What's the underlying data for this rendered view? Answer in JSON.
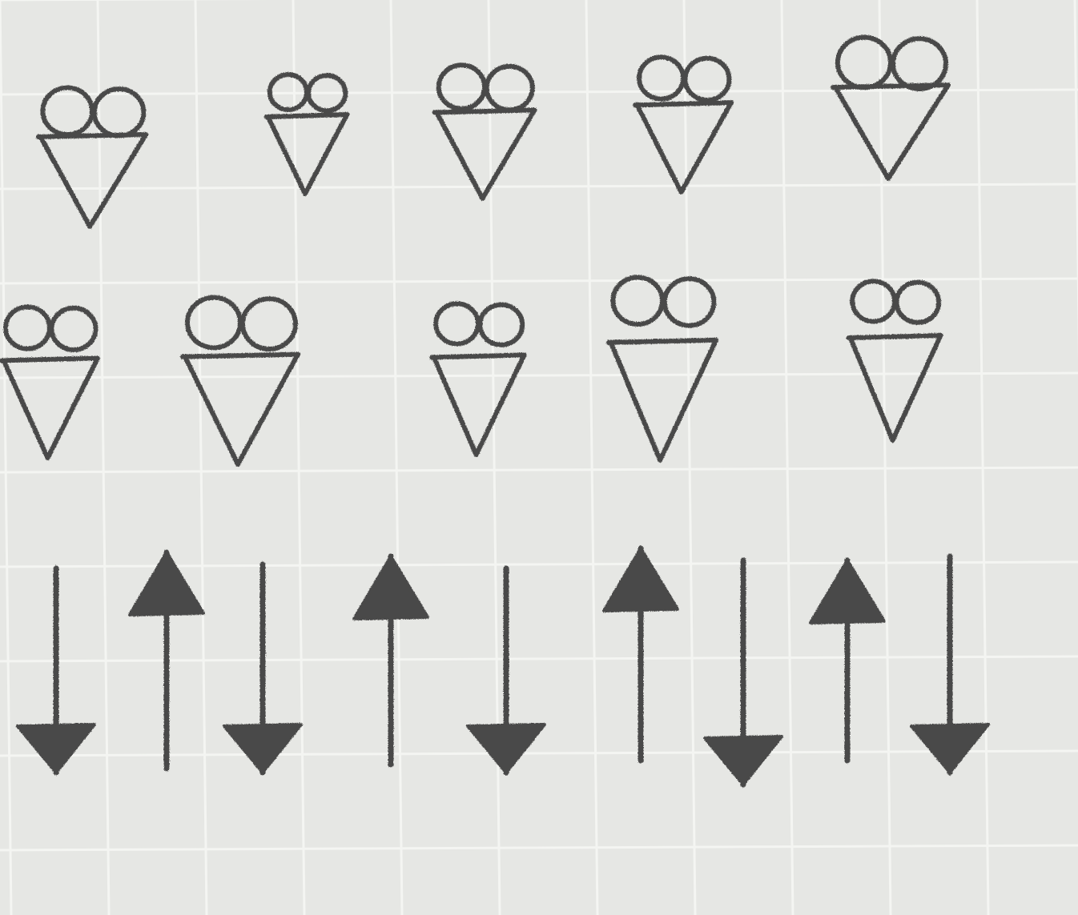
{
  "paper": {
    "background": "#e6e7e4",
    "grid_line_color": "#f4f5f2",
    "ink_color": "#4a4a48"
  },
  "rows": [
    {
      "name": "heart-symbols-row-1",
      "symbol": "heart-with-loops-icon",
      "count": 5
    },
    {
      "name": "heart-symbols-row-2",
      "symbol": "heart-with-loops-icon",
      "count": 5
    },
    {
      "name": "arrows-row",
      "symbol": "arrow-icon",
      "sequence": [
        "down",
        "up",
        "down",
        "up",
        "down",
        "up",
        "down",
        "up",
        "down"
      ]
    }
  ]
}
